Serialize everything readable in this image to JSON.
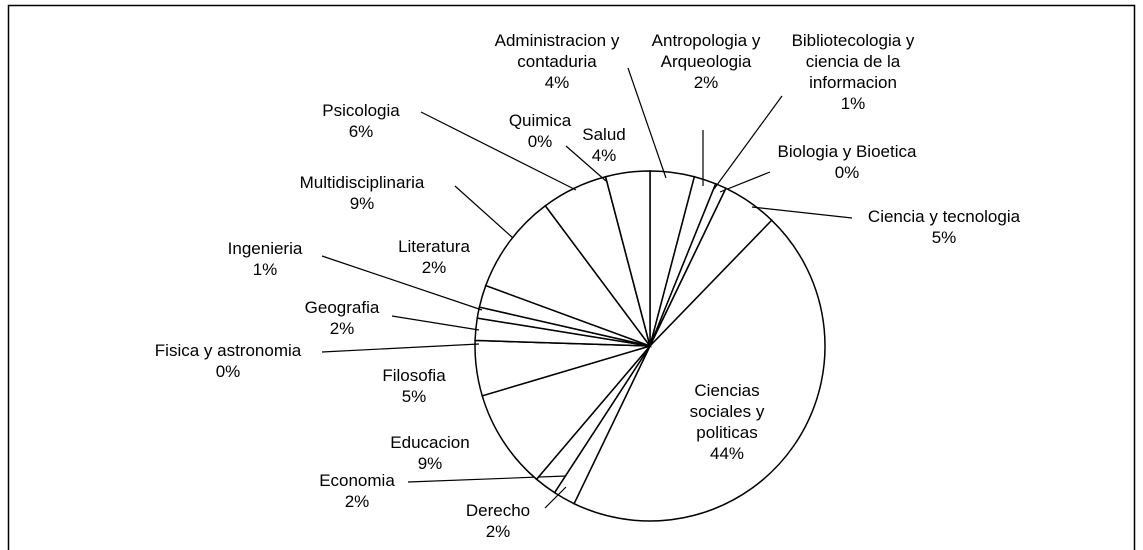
{
  "chart_data": {
    "type": "pie",
    "categories": [
      "Administracion y contaduria",
      "Antropologia y Arqueologia",
      "Bibliotecologia y ciencia de la informacion",
      "Biologia y Bioetica",
      "Ciencia y tecnologia",
      "Ciencias sociales y politicas",
      "Derecho",
      "Economia",
      "Educacion",
      "Filosofia",
      "Fisica y astronomia",
      "Geografia",
      "Ingenieria",
      "Literatura",
      "Multidisciplinaria",
      "Psicologia",
      "Quimica",
      "Salud"
    ],
    "values": [
      4,
      2,
      1,
      0,
      5,
      44,
      2,
      2,
      9,
      5,
      0,
      2,
      1,
      2,
      9,
      6,
      0,
      4
    ],
    "value_labels": [
      "4%",
      "2%",
      "1%",
      "0%",
      "5%",
      "44%",
      "2%",
      "2%",
      "9%",
      "5%",
      "0%",
      "2%",
      "1%",
      "2%",
      "9%",
      "6%",
      "0%",
      "4%"
    ],
    "color": "#ffffff"
  }
}
